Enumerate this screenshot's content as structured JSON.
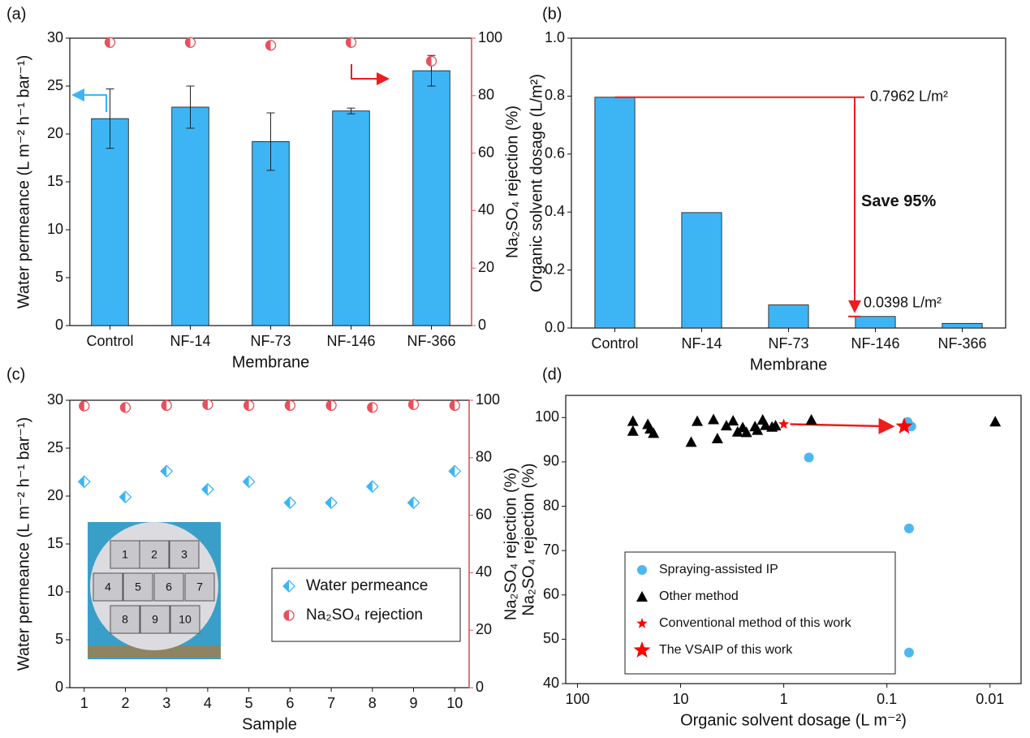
{
  "chart_data": [
    {
      "type": "bar",
      "panel_label": "(a)",
      "xlabel": "Membrane",
      "ylabel": "Water permeance (L m⁻² h⁻¹ bar⁻¹)",
      "y2label": "Na₂SO₄ rejection (%)",
      "categories": [
        "Control",
        "NF-14",
        "NF-73",
        "NF-146",
        "NF-366"
      ],
      "series": [
        {
          "color": "#3db5f4",
          "marker": "bar",
          "values": [
            21.6,
            22.8,
            19.2,
            22.4,
            26.6
          ],
          "errors": [
            3.1,
            2.2,
            3.0,
            0.3,
            1.6
          ]
        },
        {
          "color": "#e8505b",
          "marker": "half-circle",
          "axis": "y2",
          "values": [
            98.5,
            98.5,
            97.5,
            98.5,
            92
          ]
        }
      ],
      "ylim": [
        0,
        30
      ],
      "yticks": [
        0,
        5,
        10,
        15,
        20,
        25,
        30
      ],
      "y2lim": [
        0,
        100
      ],
      "y2ticks": [
        0,
        20,
        40,
        60,
        80,
        100
      ]
    },
    {
      "type": "bar",
      "panel_label": "(b)",
      "xlabel": "Membrane",
      "ylabel": "Organic solvent dosage (L/m²)",
      "categories": [
        "Control",
        "NF-14",
        "NF-73",
        "NF-146",
        "NF-366"
      ],
      "series": [
        {
          "color": "#3db5f4",
          "marker": "bar",
          "values": [
            0.7962,
            0.3981,
            0.0796,
            0.0398,
            0.0159
          ]
        }
      ],
      "ylim": [
        0,
        1
      ],
      "yticks": [
        {
          "value": 0,
          "label": "0.0"
        },
        0.2,
        0.4,
        0.6,
        0.8,
        {
          "value": 1,
          "label": "1.0"
        }
      ],
      "annotations": [
        "0.7962 L/m²",
        "Save 95%",
        "0.0398 L/m²"
      ],
      "annotation_color": "#ee1c1c"
    },
    {
      "type": "scatter",
      "panel_label": "(c)",
      "xlabel": "Sample",
      "ylabel": "Water permeance (L m⁻² h⁻¹ bar⁻¹)",
      "y2label": "Na₂SO₄ rejection (%)",
      "x": [
        1,
        2,
        3,
        4,
        5,
        6,
        7,
        8,
        9,
        10
      ],
      "series": [
        {
          "name": "Water permeance",
          "color": "#3db5f4",
          "marker": "half-diamond",
          "values": [
            21.5,
            19.9,
            22.6,
            20.7,
            21.5,
            19.3,
            19.3,
            21.0,
            19.3,
            22.6
          ]
        },
        {
          "name": "Na₂SO₄ rejection",
          "color": "#e8505b",
          "marker": "half-circle",
          "axis": "y2",
          "values": [
            98,
            97.5,
            98.2,
            98.5,
            98.2,
            98.2,
            98.2,
            97.5,
            98.5,
            98.2
          ]
        }
      ],
      "xlim": [
        0.65,
        10.35
      ],
      "xticks": [
        1,
        2,
        3,
        4,
        5,
        6,
        7,
        8,
        9,
        10
      ],
      "ylim": [
        0,
        30
      ],
      "yticks": [
        0,
        5,
        10,
        15,
        20,
        25,
        30
      ],
      "y2lim": [
        0,
        100
      ],
      "y2ticks": [
        0,
        20,
        40,
        60,
        80,
        100
      ],
      "legend": "lower right",
      "inset_labels": [
        "1",
        "2",
        "3",
        "4",
        "5",
        "6",
        "7",
        "8",
        "9",
        "10"
      ]
    },
    {
      "type": "scatter",
      "panel_label": "(d)",
      "xlabel": "Organic solvent dosage (L m⁻²)",
      "ylabel": "Na₂SO₄ rejection (%)",
      "xscale": "log",
      "xlim": [
        130,
        0.005
      ],
      "xticks": [
        100,
        10,
        1,
        0.1,
        0.01
      ],
      "ylim": [
        40,
        105
      ],
      "yticks": [
        40,
        50,
        60,
        70,
        80,
        90,
        100
      ],
      "legend": "lower left",
      "series": [
        {
          "name": "Spraying-assisted IP",
          "color": "#4db8ef",
          "marker": "circle",
          "x": [
            0.57,
            0.063,
            0.058,
            0.061,
            0.061
          ],
          "values": [
            91,
            99,
            98,
            75,
            47
          ]
        },
        {
          "name": "Other method",
          "color": "#000000",
          "marker": "triangle",
          "x": [
            29,
            29,
            20.8,
            19.7,
            18.3,
            7.9,
            6.9,
            4.8,
            4.4,
            3.6,
            3.1,
            2.8,
            2.5,
            2.3,
            1.9,
            1.8,
            1.6,
            1.5,
            1.3,
            1.2,
            0.54,
            0.0089
          ],
          "values": [
            99.2,
            97,
            98.5,
            97.5,
            96.5,
            94.5,
            99.2,
            99.6,
            95.3,
            98.2,
            99.3,
            96.8,
            97.8,
            96.7,
            98,
            97.2,
            99.5,
            98.3,
            97.9,
            98.2,
            99.5,
            99.1
          ]
        },
        {
          "name": "Conventional method of this work",
          "color": "#ff0000",
          "marker": "small-star",
          "x": [
            1.0
          ],
          "values": [
            98.5
          ]
        },
        {
          "name": "The VSAIP of this work",
          "color": "#ff0000",
          "marker": "star",
          "x": [
            0.068
          ],
          "values": [
            98
          ]
        }
      ]
    }
  ]
}
